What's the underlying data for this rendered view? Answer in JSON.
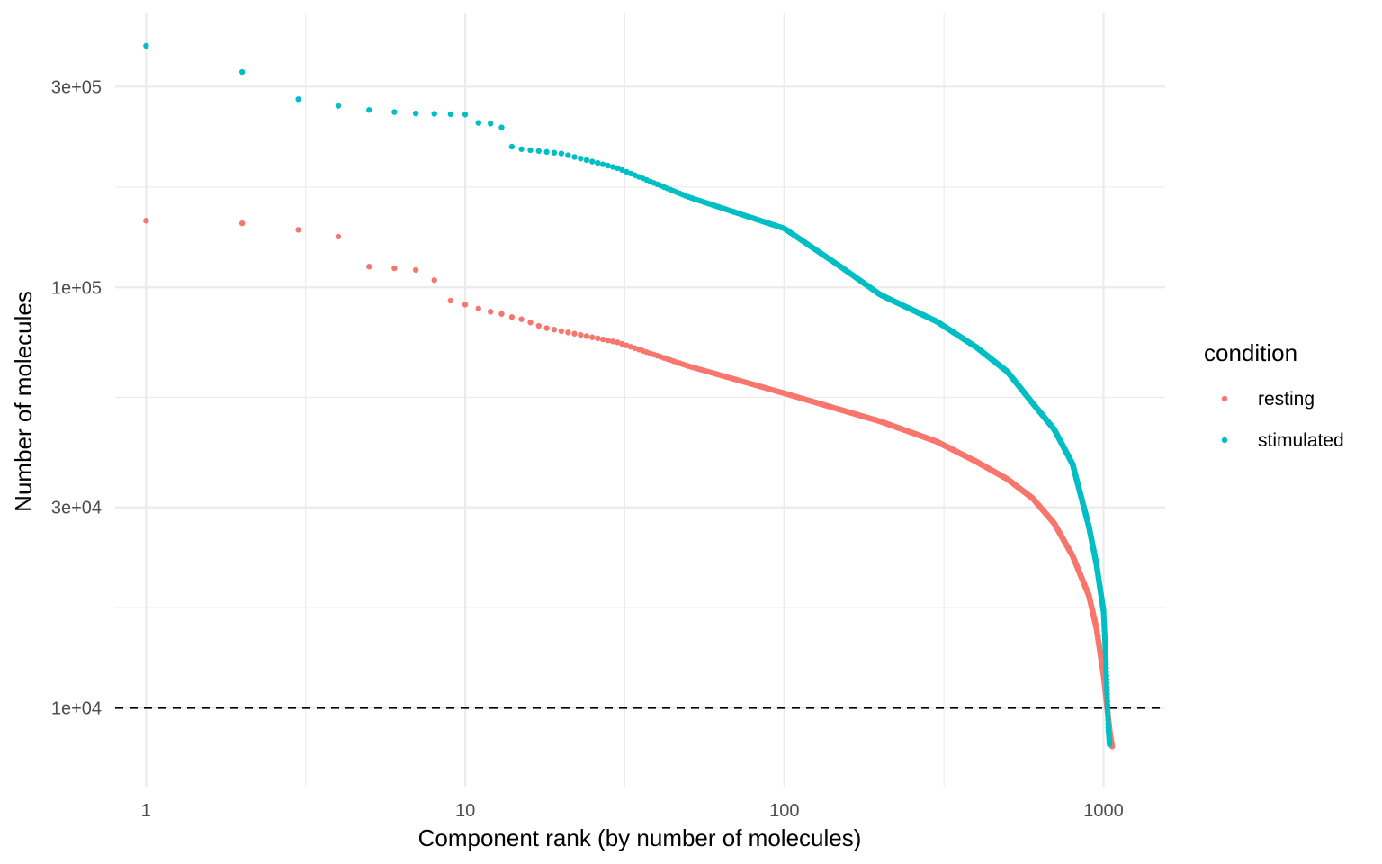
{
  "chart_data": {
    "type": "scatter",
    "title": "",
    "xlabel": "Component rank (by number of molecules)",
    "ylabel": "Number of molecules",
    "x_scale": "log",
    "y_scale": "log",
    "xlim": [
      0.8,
      1560
    ],
    "ylim": [
      6500,
      450000
    ],
    "x_ticks": [
      1,
      10,
      100,
      1000
    ],
    "x_tick_labels": [
      "1",
      "10",
      "100",
      "1000"
    ],
    "y_ticks": [
      10000,
      30000,
      100000,
      300000
    ],
    "y_tick_labels": [
      "1e+04",
      "3e+04",
      "1e+05",
      "3e+05"
    ],
    "grid": true,
    "reference_line": {
      "axis": "y",
      "value": 10000,
      "style": "dashed",
      "color": "#000000"
    },
    "legend": {
      "title": "condition",
      "position": "right"
    },
    "series": [
      {
        "name": "resting",
        "color": "#F8766D",
        "explicit_points": [
          [
            1,
            144000
          ],
          [
            2,
            142000
          ],
          [
            3,
            137000
          ],
          [
            4,
            132000
          ],
          [
            5,
            112000
          ],
          [
            6,
            111000
          ],
          [
            7,
            110000
          ],
          [
            8,
            104000
          ],
          [
            9,
            93000
          ],
          [
            10,
            91000
          ],
          [
            11,
            89000
          ],
          [
            12,
            87500
          ],
          [
            13,
            86500
          ],
          [
            14,
            85000
          ],
          [
            15,
            84000
          ],
          [
            16,
            82500
          ],
          [
            17,
            81000
          ],
          [
            18,
            80000
          ]
        ],
        "curve_points": [
          [
            18,
            80000
          ],
          [
            30,
            74000
          ],
          [
            50,
            65000
          ],
          [
            100,
            56000
          ],
          [
            200,
            48000
          ],
          [
            300,
            43000
          ],
          [
            400,
            38500
          ],
          [
            500,
            35000
          ],
          [
            600,
            31500
          ],
          [
            700,
            27500
          ],
          [
            800,
            23000
          ],
          [
            900,
            18500
          ],
          [
            950,
            15500
          ],
          [
            1000,
            12000
          ],
          [
            1030,
            9800
          ],
          [
            1050,
            8600
          ],
          [
            1065,
            8100
          ]
        ],
        "curve_n_points": 1047
      },
      {
        "name": "stimulated",
        "color": "#00BFC4",
        "explicit_points": [
          [
            1,
            375000
          ],
          [
            2,
            325000
          ],
          [
            3,
            280000
          ],
          [
            4,
            270000
          ],
          [
            5,
            264000
          ],
          [
            6,
            261000
          ],
          [
            7,
            259000
          ],
          [
            8,
            258500
          ],
          [
            9,
            258000
          ],
          [
            10,
            257500
          ],
          [
            11,
            246000
          ],
          [
            12,
            245000
          ],
          [
            13,
            240000
          ],
          [
            14,
            216000
          ]
        ],
        "curve_points": [
          [
            14,
            216000
          ],
          [
            15,
            213000
          ],
          [
            20,
            208000
          ],
          [
            30,
            192000
          ],
          [
            50,
            164000
          ],
          [
            100,
            138000
          ],
          [
            150,
            112000
          ],
          [
            200,
            96000
          ],
          [
            300,
            83000
          ],
          [
            400,
            72000
          ],
          [
            500,
            63000
          ],
          [
            600,
            53000
          ],
          [
            700,
            46000
          ],
          [
            800,
            38000
          ],
          [
            900,
            27000
          ],
          [
            950,
            22000
          ],
          [
            1000,
            17000
          ],
          [
            1015,
            13500
          ],
          [
            1025,
            11000
          ],
          [
            1035,
            9000
          ],
          [
            1045,
            8200
          ]
        ],
        "curve_n_points": 1031
      }
    ]
  }
}
